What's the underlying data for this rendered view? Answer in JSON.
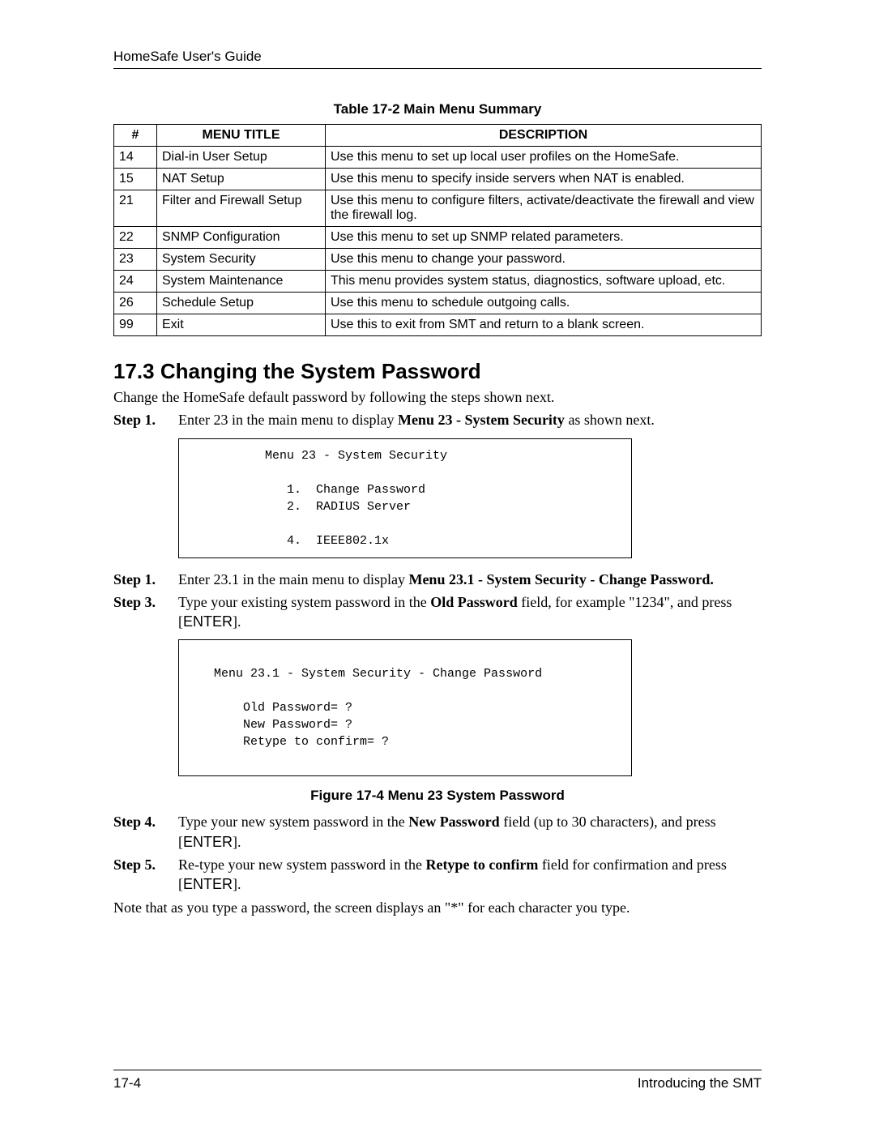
{
  "header": "HomeSafe User's Guide",
  "table_caption": "Table 17-2 Main Menu Summary",
  "table": {
    "columns": [
      "#",
      "MENU TITLE",
      "DESCRIPTION"
    ],
    "rows": [
      [
        "14",
        "Dial-in User Setup",
        "Use this menu to set up local user profiles on the HomeSafe."
      ],
      [
        "15",
        "NAT Setup",
        "Use this menu to specify inside servers when NAT is enabled."
      ],
      [
        "21",
        "Filter and Firewall Setup",
        "Use this menu to configure filters, activate/deactivate the firewall and view the firewall log."
      ],
      [
        "22",
        "SNMP Configuration",
        "Use this menu to set up SNMP related parameters."
      ],
      [
        "23",
        "System Security",
        "Use this menu to change your password."
      ],
      [
        "24",
        "System Maintenance",
        "This menu provides system status, diagnostics, software upload, etc."
      ],
      [
        "26",
        "Schedule Setup",
        "Use this menu to schedule outgoing calls."
      ],
      [
        "99",
        "Exit",
        "Use this to exit from SMT and return to a blank screen."
      ]
    ]
  },
  "section_heading": "17.3  Changing the System Password",
  "intro": "Change the HomeSafe default password by following the steps shown next.",
  "step1": {
    "label": "Step 1.",
    "pre": "Enter 23 in the main menu to display ",
    "bold": "Menu 23 - System Security",
    "post": " as shown next."
  },
  "code1": "          Menu 23 - System Security\n\n             1.  Change Password\n             2.  RADIUS Server\n\n             4.  IEEE802.1x\n",
  "step1b": {
    "label": "Step 1.",
    "pre": "Enter 23.1 in the main menu to display ",
    "bold": "Menu 23.1 - System Security - Change Password."
  },
  "step3": {
    "label": "Step 3.",
    "pre": "Type your existing system password in the ",
    "bold": "Old Password",
    "post1": " field, for example \"1234\", and press [",
    "enter": "ENTER",
    "post2": "]."
  },
  "code2": "\n   Menu 23.1 - System Security - Change Password\n\n       Old Password= ?\n       New Password= ?\n       Retype to confirm= ?\n\n",
  "figure_caption": "Figure 17-4 Menu 23 System Password",
  "step4": {
    "label": "Step 4.",
    "pre": "Type your new system password in the ",
    "bold": "New Password",
    "post1": " field (up to 30 characters), and press [",
    "enter": "ENTER",
    "post2": "]."
  },
  "step5": {
    "label": "Step 5.",
    "pre": "Re-type your new system password in the ",
    "bold": "Retype to confirm",
    "post1": " field for confirmation and press [",
    "enter": "ENTER",
    "post2": "]."
  },
  "note": "Note that as you type a password, the screen displays an \"*\" for each character you type.",
  "footer_left": "17-4",
  "footer_right": "Introducing the SMT"
}
